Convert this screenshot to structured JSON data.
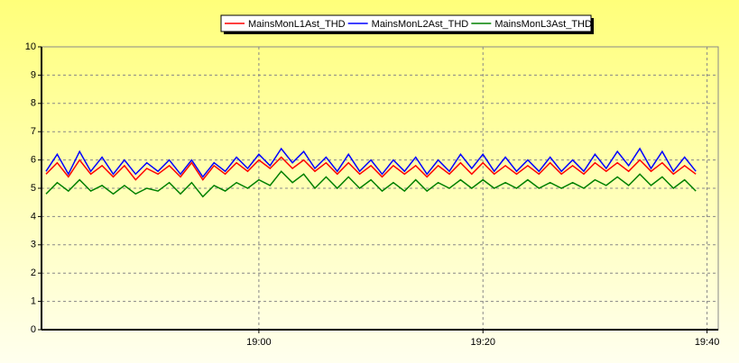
{
  "chart_data": {
    "type": "line",
    "x": [
      1121,
      1122,
      1123,
      1124,
      1125,
      1126,
      1127,
      1128,
      1129,
      1130,
      1131,
      1132,
      1133,
      1134,
      1135,
      1136,
      1137,
      1138,
      1139,
      1140,
      1141,
      1142,
      1143,
      1144,
      1145,
      1146,
      1147,
      1148,
      1149,
      1150,
      1151,
      1152,
      1153,
      1154,
      1155,
      1156,
      1157,
      1158,
      1159,
      1160,
      1161,
      1162,
      1163,
      1164,
      1165,
      1166,
      1167,
      1168,
      1169,
      1170,
      1171,
      1172,
      1173,
      1174,
      1175,
      1176,
      1177,
      1178,
      1179
    ],
    "series": [
      {
        "name": "MainsMonL1Ast_THD",
        "color": "#ff0000",
        "values": [
          5.5,
          5.9,
          5.4,
          6.0,
          5.5,
          5.8,
          5.4,
          5.8,
          5.3,
          5.7,
          5.5,
          5.8,
          5.4,
          5.9,
          5.3,
          5.8,
          5.5,
          5.9,
          5.6,
          6.0,
          5.7,
          6.1,
          5.7,
          6.0,
          5.6,
          5.9,
          5.5,
          5.9,
          5.5,
          5.8,
          5.4,
          5.8,
          5.5,
          5.8,
          5.4,
          5.8,
          5.5,
          5.9,
          5.5,
          5.9,
          5.5,
          5.8,
          5.5,
          5.8,
          5.5,
          5.9,
          5.5,
          5.8,
          5.5,
          5.9,
          5.6,
          5.9,
          5.6,
          6.0,
          5.6,
          5.9,
          5.5,
          5.8,
          5.5
        ]
      },
      {
        "name": "MainsMonL2Ast_THD",
        "color": "#0000ff",
        "values": [
          5.6,
          6.2,
          5.5,
          6.3,
          5.6,
          6.1,
          5.5,
          6.0,
          5.5,
          5.9,
          5.6,
          6.0,
          5.5,
          6.0,
          5.4,
          5.9,
          5.6,
          6.1,
          5.7,
          6.2,
          5.8,
          6.4,
          5.9,
          6.3,
          5.7,
          6.1,
          5.6,
          6.2,
          5.6,
          6.0,
          5.5,
          6.0,
          5.6,
          6.1,
          5.5,
          6.0,
          5.6,
          6.2,
          5.7,
          6.2,
          5.6,
          6.1,
          5.6,
          6.0,
          5.6,
          6.1,
          5.6,
          6.0,
          5.6,
          6.2,
          5.7,
          6.3,
          5.8,
          6.4,
          5.7,
          6.3,
          5.6,
          6.1,
          5.6
        ]
      },
      {
        "name": "MainsMonL3Ast_THD",
        "color": "#008000",
        "values": [
          4.8,
          5.2,
          4.9,
          5.3,
          4.9,
          5.1,
          4.8,
          5.1,
          4.8,
          5.0,
          4.9,
          5.2,
          4.8,
          5.2,
          4.7,
          5.1,
          4.9,
          5.2,
          5.0,
          5.3,
          5.1,
          5.6,
          5.2,
          5.5,
          5.0,
          5.4,
          5.0,
          5.4,
          5.0,
          5.3,
          4.9,
          5.2,
          4.9,
          5.3,
          4.9,
          5.2,
          5.0,
          5.3,
          5.0,
          5.3,
          5.0,
          5.2,
          5.0,
          5.3,
          5.0,
          5.2,
          5.0,
          5.2,
          5.0,
          5.3,
          5.1,
          5.4,
          5.1,
          5.5,
          5.1,
          5.4,
          5.0,
          5.3,
          4.9
        ]
      }
    ],
    "xlim": [
      1120.6,
      1181
    ],
    "xticks": [
      {
        "value": 1140,
        "label": "19:00"
      },
      {
        "value": 1160,
        "label": "19:20"
      },
      {
        "value": 1180,
        "label": "19:40"
      }
    ],
    "ylim": [
      0,
      10
    ],
    "yticks": [
      0,
      1,
      2,
      3,
      4,
      5,
      6,
      7,
      8,
      9,
      10
    ],
    "grid": true,
    "legend": "top"
  }
}
